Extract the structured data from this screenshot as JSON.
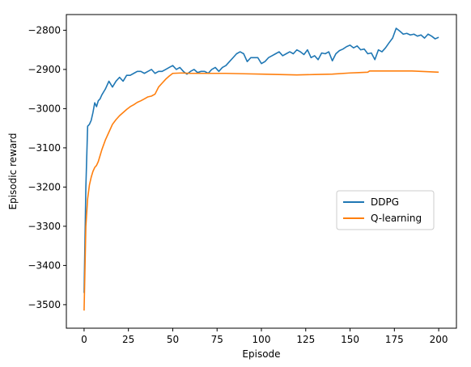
{
  "chart_data": {
    "type": "line",
    "title": "",
    "xlabel": "Episode",
    "ylabel": "Episodic reward",
    "xlim": [
      -10,
      210
    ],
    "ylim": [
      -3560,
      -2760
    ],
    "xticks": [
      0,
      25,
      50,
      75,
      100,
      125,
      150,
      175,
      200
    ],
    "xtick_labels": [
      "0",
      "25",
      "50",
      "75",
      "100",
      "125",
      "150",
      "175",
      "200"
    ],
    "yticks": [
      -2800,
      -2900,
      -3000,
      -3100,
      -3200,
      -3300,
      -3400,
      -3500
    ],
    "ytick_labels": [
      "−2800",
      "−2900",
      "−3000",
      "−3100",
      "−3200",
      "−3300",
      "−3400",
      "−3500"
    ],
    "grid": false,
    "legend_position": "center-right",
    "series": [
      {
        "name": "DDPG",
        "color": "#1f77b4",
        "x": [
          0,
          1,
          2,
          3,
          4,
          5,
          6,
          7,
          8,
          9,
          10,
          12,
          14,
          16,
          18,
          20,
          22,
          24,
          26,
          28,
          30,
          32,
          34,
          36,
          38,
          40,
          42,
          44,
          46,
          48,
          50,
          52,
          54,
          56,
          58,
          60,
          62,
          64,
          66,
          68,
          70,
          72,
          74,
          76,
          78,
          80,
          82,
          84,
          86,
          88,
          90,
          92,
          94,
          96,
          98,
          100,
          102,
          104,
          106,
          108,
          110,
          112,
          114,
          116,
          118,
          120,
          122,
          124,
          126,
          128,
          130,
          132,
          134,
          136,
          138,
          140,
          142,
          144,
          146,
          148,
          150,
          152,
          154,
          156,
          158,
          160,
          162,
          164,
          166,
          168,
          170,
          172,
          174,
          176,
          178,
          180,
          182,
          184,
          186,
          188,
          190,
          192,
          194,
          196,
          198,
          200
        ],
        "values": [
          -3470,
          -3200,
          -3045,
          -3040,
          -3030,
          -3010,
          -2985,
          -2995,
          -2980,
          -2975,
          -2965,
          -2950,
          -2930,
          -2945,
          -2930,
          -2920,
          -2930,
          -2915,
          -2915,
          -2910,
          -2905,
          -2905,
          -2910,
          -2905,
          -2900,
          -2910,
          -2905,
          -2905,
          -2900,
          -2895,
          -2890,
          -2900,
          -2895,
          -2905,
          -2912,
          -2905,
          -2900,
          -2908,
          -2905,
          -2905,
          -2910,
          -2900,
          -2895,
          -2905,
          -2895,
          -2890,
          -2880,
          -2870,
          -2860,
          -2855,
          -2860,
          -2880,
          -2870,
          -2870,
          -2870,
          -2885,
          -2880,
          -2870,
          -2865,
          -2860,
          -2855,
          -2865,
          -2860,
          -2855,
          -2860,
          -2850,
          -2855,
          -2862,
          -2850,
          -2870,
          -2865,
          -2875,
          -2858,
          -2860,
          -2855,
          -2878,
          -2860,
          -2852,
          -2848,
          -2842,
          -2838,
          -2845,
          -2840,
          -2850,
          -2848,
          -2860,
          -2858,
          -2875,
          -2850,
          -2855,
          -2845,
          -2832,
          -2820,
          -2795,
          -2802,
          -2810,
          -2808,
          -2812,
          -2810,
          -2815,
          -2812,
          -2820,
          -2810,
          -2815,
          -2822,
          -2818
        ]
      },
      {
        "name": "Q-learning",
        "color": "#ff7f0e",
        "x": [
          0,
          1,
          2,
          3,
          4,
          5,
          6,
          7,
          8,
          9,
          10,
          12,
          14,
          16,
          18,
          20,
          22,
          24,
          26,
          28,
          30,
          32,
          34,
          36,
          38,
          40,
          42,
          44,
          46,
          48,
          50,
          55,
          60,
          65,
          70,
          75,
          80,
          90,
          100,
          110,
          120,
          130,
          140,
          150,
          155,
          160,
          161,
          165,
          170,
          175,
          180,
          185,
          190,
          195,
          200
        ],
        "values": [
          -3515,
          -3300,
          -3230,
          -3195,
          -3175,
          -3160,
          -3150,
          -3145,
          -3135,
          -3120,
          -3105,
          -3080,
          -3060,
          -3040,
          -3028,
          -3018,
          -3010,
          -3002,
          -2995,
          -2990,
          -2984,
          -2980,
          -2975,
          -2970,
          -2968,
          -2963,
          -2945,
          -2935,
          -2925,
          -2917,
          -2910,
          -2909,
          -2910,
          -2910,
          -2910,
          -2910,
          -2910,
          -2911,
          -2912,
          -2913,
          -2914,
          -2913,
          -2912,
          -2909,
          -2908,
          -2907,
          -2904,
          -2904,
          -2904,
          -2904,
          -2904,
          -2904,
          -2905,
          -2906,
          -2907
        ]
      }
    ]
  }
}
